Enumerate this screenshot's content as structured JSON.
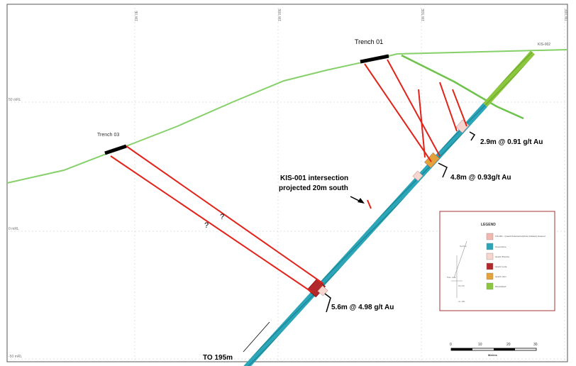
{
  "grid": {
    "top_ticks": [
      "1W 0E",
      "1W 00E",
      "1W 50E",
      "1W 00E"
    ],
    "left_ticks": [
      "50 mRL",
      "0 mRL",
      "-50 mRL"
    ]
  },
  "trenches": {
    "trench_01": "Trench 01",
    "trench_03": "Trench 03"
  },
  "drillhole": {
    "collar_label": "KIS-002",
    "to_label": "TO 195m"
  },
  "intercepts": {
    "upper": "2.9m @ 0.91 g/t Au",
    "middle": "4.8m @ 0.93g/t Au",
    "lower": "5.6m @ 4.98 g/t Au"
  },
  "projection_note": {
    "line1": "KIS-001 intersection",
    "line2": "projected 20m south"
  },
  "query_marks": [
    "?",
    "?"
  ],
  "legend": {
    "title": "LEGEND",
    "items": [
      {
        "label": "KIS-001 - Quartz/Ankerite/sulphide (foliated) sheared",
        "color": "#f2b8b0"
      },
      {
        "label": "Greenstone",
        "color": "#2aa6b8"
      },
      {
        "label": "Quartz Breccia",
        "color": "#f6d6cf"
      },
      {
        "label": "Quartz Lode",
        "color": "#b3282a"
      },
      {
        "label": "Quartz Vein",
        "color": "#e3a33a"
      },
      {
        "label": "Mineralised",
        "color": "#8cc63f"
      }
    ],
    "inset_texts": [
      "Section",
      "Plan view",
      "Dip 50",
      "Az 180"
    ]
  },
  "scale_bar": {
    "ticks": [
      "0",
      "10",
      "20",
      "30"
    ],
    "unit": "Metres"
  },
  "colors": {
    "topography": "#86d06a",
    "fault": "#6cc24a",
    "vein": "#e2231a",
    "trench": "#000000",
    "hole_teal": "#2aa6b8",
    "hole_green": "#8cc63f"
  }
}
